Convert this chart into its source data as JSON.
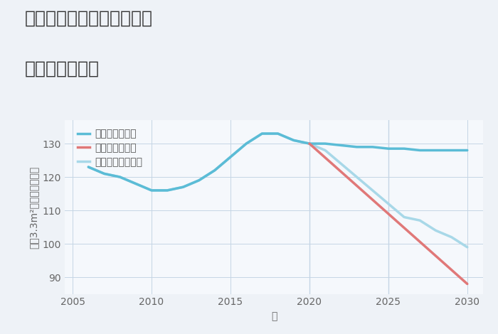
{
  "title_line1": "兵庫県西宮市下大市東町の",
  "title_line2": "土地の価格推移",
  "xlabel": "年",
  "ylabel": "坪（3.3m²）単価（万円）",
  "bg_color": "#eef2f7",
  "plot_bg_color": "#f5f8fc",
  "good_scenario": {
    "label": "グッドシナリオ",
    "color": "#5bbcd6",
    "x": [
      2006,
      2007,
      2008,
      2009,
      2010,
      2011,
      2012,
      2013,
      2014,
      2015,
      2016,
      2017,
      2018,
      2019,
      2020,
      2021,
      2022,
      2023,
      2024,
      2025,
      2026,
      2027,
      2028,
      2029,
      2030
    ],
    "y": [
      123,
      121,
      120,
      118,
      116,
      116,
      117,
      119,
      122,
      126,
      130,
      133,
      133,
      131,
      130,
      130,
      129.5,
      129,
      129,
      128.5,
      128.5,
      128,
      128,
      128,
      128
    ]
  },
  "bad_scenario": {
    "label": "バッドシナリオ",
    "color": "#e07878",
    "x": [
      2020,
      2030
    ],
    "y": [
      130,
      88
    ]
  },
  "normal_scenario": {
    "label": "ノーマルシナリオ",
    "color": "#a8d8e8",
    "x": [
      2006,
      2007,
      2008,
      2009,
      2010,
      2011,
      2012,
      2013,
      2014,
      2015,
      2016,
      2017,
      2018,
      2019,
      2020,
      2021,
      2022,
      2023,
      2024,
      2025,
      2026,
      2027,
      2028,
      2029,
      2030
    ],
    "y": [
      123,
      121,
      120,
      118,
      116,
      116,
      117,
      119,
      122,
      126,
      130,
      133,
      133,
      131,
      130,
      128,
      124,
      120,
      116,
      112,
      108,
      107,
      104,
      102,
      99
    ]
  },
  "vlines": [
    2020,
    2025
  ],
  "xlim": [
    2004.5,
    2031
  ],
  "ylim": [
    85,
    137
  ],
  "yticks": [
    90,
    100,
    110,
    120,
    130
  ],
  "xticks": [
    2005,
    2010,
    2015,
    2020,
    2025,
    2030
  ],
  "grid_color": "#c5d5e5",
  "title_fontsize": 18,
  "label_fontsize": 10,
  "tick_fontsize": 10,
  "line_width": 2.5,
  "legend_fontsize": 10
}
